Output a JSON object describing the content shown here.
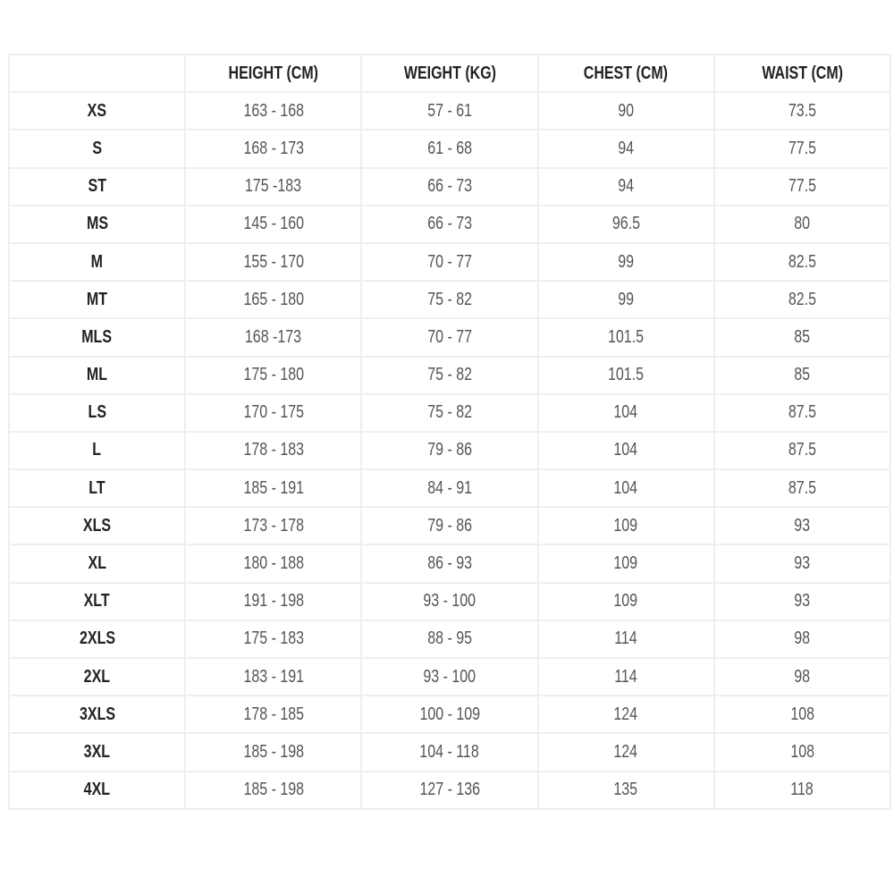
{
  "table": {
    "headers": [
      "",
      "HEIGHT (CM)",
      "WEIGHT (KG)",
      "CHEST (CM)",
      "WAIST (CM)"
    ],
    "rows": [
      [
        "XS",
        "163 - 168",
        "57 - 61",
        "90",
        "73.5"
      ],
      [
        "S",
        "168 - 173",
        "61 - 68",
        "94",
        "77.5"
      ],
      [
        "ST",
        "175 -183",
        "66 - 73",
        "94",
        "77.5"
      ],
      [
        "MS",
        "145 - 160",
        "66 - 73",
        "96.5",
        "80"
      ],
      [
        "M",
        "155 - 170",
        "70 - 77",
        "99",
        "82.5"
      ],
      [
        "MT",
        "165 - 180",
        "75 - 82",
        "99",
        "82.5"
      ],
      [
        "MLS",
        "168 -173",
        "70 - 77",
        "101.5",
        "85"
      ],
      [
        "ML",
        "175 - 180",
        "75 - 82",
        "101.5",
        "85"
      ],
      [
        "LS",
        "170 - 175",
        "75 - 82",
        "104",
        "87.5"
      ],
      [
        "L",
        "178 - 183",
        "79 - 86",
        "104",
        "87.5"
      ],
      [
        "LT",
        "185 - 191",
        "84 - 91",
        "104",
        "87.5"
      ],
      [
        "XLS",
        "173 - 178",
        "79 - 86",
        "109",
        "93"
      ],
      [
        "XL",
        "180 - 188",
        "86 - 93",
        "109",
        "93"
      ],
      [
        "XLT",
        "191 - 198",
        "93 - 100",
        "109",
        "93"
      ],
      [
        "2XLS",
        "175 - 183",
        "88 - 95",
        "114",
        "98"
      ],
      [
        "2XL",
        "183 - 191",
        "93 - 100",
        "114",
        "98"
      ],
      [
        "3XLS",
        "178 - 185",
        "100 - 109",
        "124",
        "108"
      ],
      [
        "3XL",
        "185 - 198",
        "104 - 118",
        "124",
        "108"
      ],
      [
        "4XL",
        "185 - 198",
        "127 - 136",
        "135",
        "118"
      ]
    ]
  }
}
